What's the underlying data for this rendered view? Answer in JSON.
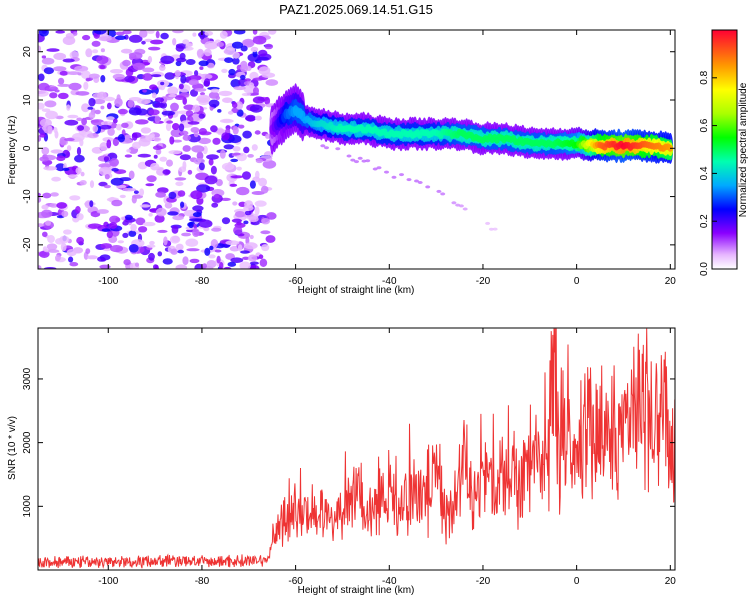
{
  "title": "PAZ1.2025.069.14.51.G15",
  "colors": {
    "background": "#ffffff",
    "snr_line": "#ee3333",
    "axis": "#000000"
  },
  "chart_data": [
    {
      "type": "heatmap",
      "xlabel": "Height of straight line (km)",
      "ylabel": "Frequency (Hz)",
      "xlim": [
        -115,
        21
      ],
      "ylim": [
        -25,
        24.5
      ],
      "xticks": [
        -100,
        -80,
        -60,
        -40,
        -20,
        0,
        20
      ],
      "yticks": [
        -20,
        -10,
        0,
        10,
        20
      ],
      "colorbar": {
        "label": "Normalized spectral amplitude",
        "range": [
          0,
          1
        ],
        "ticks": [
          0.0,
          0.2,
          0.4,
          0.6,
          0.8
        ],
        "colormap": "rainbow-white-to-red"
      },
      "noise_region": {
        "x": [
          -115,
          -65
        ],
        "f": [
          -25,
          24.5
        ],
        "amplitude": [
          0.05,
          0.25
        ]
      },
      "signal_ridge": {
        "x": [
          -65,
          -62,
          -60,
          -58,
          -55,
          -50,
          -45,
          -40,
          -35,
          -30,
          -25,
          -20,
          -15,
          -10,
          -5,
          0,
          5,
          10,
          15,
          20
        ],
        "f": [
          4,
          7,
          8,
          6,
          5,
          4,
          4,
          3,
          3,
          3,
          3,
          2,
          2,
          1,
          1,
          1,
          0.5,
          0.5,
          0.5,
          0
        ],
        "amplitude": [
          0.15,
          0.3,
          0.35,
          0.35,
          0.4,
          0.45,
          0.45,
          0.45,
          0.45,
          0.45,
          0.5,
          0.5,
          0.5,
          0.5,
          0.5,
          0.55,
          0.9,
          1.0,
          0.9,
          0.85
        ]
      },
      "secondary_branch": {
        "x": [
          -55,
          -50,
          -45,
          -40,
          -35,
          -30,
          -25,
          -20,
          -17
        ],
        "f": [
          1,
          -1,
          -3,
          -5,
          -7,
          -9,
          -12,
          -15,
          -17
        ],
        "amplitude": [
          0.1,
          0.1,
          0.1,
          0.1,
          0.1,
          0.1,
          0.08,
          0.06,
          0.05
        ]
      }
    },
    {
      "type": "line",
      "xlabel": "Height of straight line (km)",
      "ylabel": "SNR (10 * v/v)",
      "xlim": [
        -115,
        21
      ],
      "ylim": [
        0,
        3800
      ],
      "xticks": [
        -100,
        -80,
        -60,
        -40,
        -20,
        0,
        20
      ],
      "yticks": [
        1000,
        2000,
        3000
      ],
      "series": [
        {
          "x": [
            -115,
            -110,
            -105,
            -100,
            -95,
            -90,
            -85,
            -80,
            -75,
            -70,
            -66,
            -64,
            -62,
            -60,
            -58,
            -55,
            -52,
            -50,
            -48,
            -45,
            -42,
            -40,
            -38,
            -35,
            -32,
            -30,
            -28,
            -26,
            -24,
            -22,
            -20,
            -18,
            -16,
            -14,
            -12,
            -10,
            -8,
            -6,
            -5,
            -4,
            -2,
            0,
            2,
            4,
            6,
            8,
            10,
            12,
            14,
            16,
            18,
            19,
            20,
            21
          ],
          "values": [
            100,
            120,
            130,
            120,
            130,
            140,
            150,
            130,
            140,
            150,
            160,
            600,
            800,
            900,
            800,
            1000,
            700,
            900,
            1200,
            800,
            1100,
            1200,
            900,
            1300,
            1000,
            1600,
            900,
            1200,
            1800,
            1000,
            1600,
            1300,
            1400,
            1500,
            1200,
            1700,
            1500,
            2000,
            3800,
            1900,
            2300,
            1700,
            2200,
            2000,
            2300,
            2100,
            2300,
            2500,
            2400,
            2500,
            2700,
            2800,
            1700,
            1800
          ]
        }
      ]
    }
  ]
}
